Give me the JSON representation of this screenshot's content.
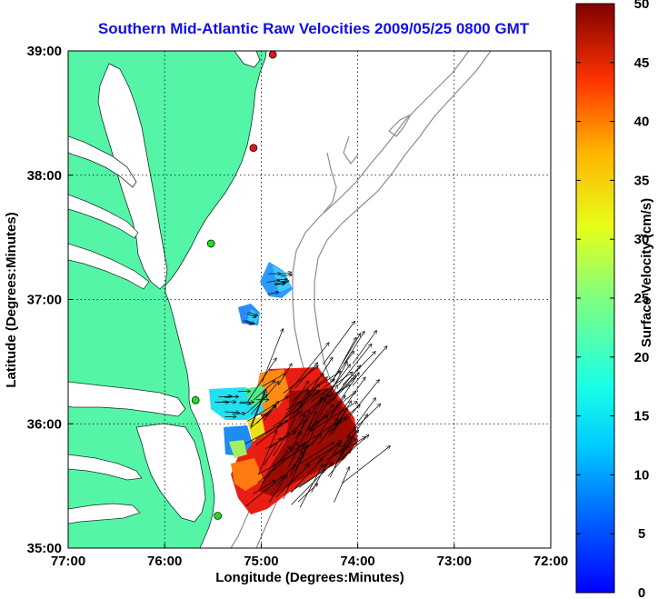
{
  "title": "Southern Mid-Atlantic Raw Velocities 2009/05/25 0800 GMT",
  "axes": {
    "xlabel": "Longitude (Degrees:Minutes)",
    "ylabel": "Latitude (Degrees:Minutes)",
    "xticks": [
      "77:00",
      "76:00",
      "75:00",
      "74:00",
      "73:00",
      "72:00"
    ],
    "yticks": [
      "39:00",
      "38:00",
      "37:00",
      "36:00",
      "35:00"
    ],
    "xlim": [
      -77,
      -72
    ],
    "ylim": [
      35,
      39
    ],
    "grid": true
  },
  "colorbar": {
    "label": "Surface Velocity (cm/s)",
    "ticks": [
      "50",
      "45",
      "40",
      "35",
      "30",
      "25",
      "20",
      "15",
      "10",
      "5",
      "0"
    ],
    "range": [
      0,
      50
    ],
    "colormap": "jet"
  },
  "colors": {
    "title": "#1010e6",
    "land": "#55f5a8",
    "bathymetry": "#8c8c8c",
    "station_red": "#e01818",
    "station_green": "#22dd22"
  },
  "stations": [
    {
      "lon": -74.88,
      "lat": 38.97,
      "color": "red"
    },
    {
      "lon": -75.08,
      "lat": 38.22,
      "color": "red"
    },
    {
      "lon": -75.52,
      "lat": 37.45,
      "color": "green"
    },
    {
      "lon": -75.68,
      "lat": 36.19,
      "color": "green"
    },
    {
      "lon": -75.45,
      "lat": 35.26,
      "color": "green"
    }
  ]
}
